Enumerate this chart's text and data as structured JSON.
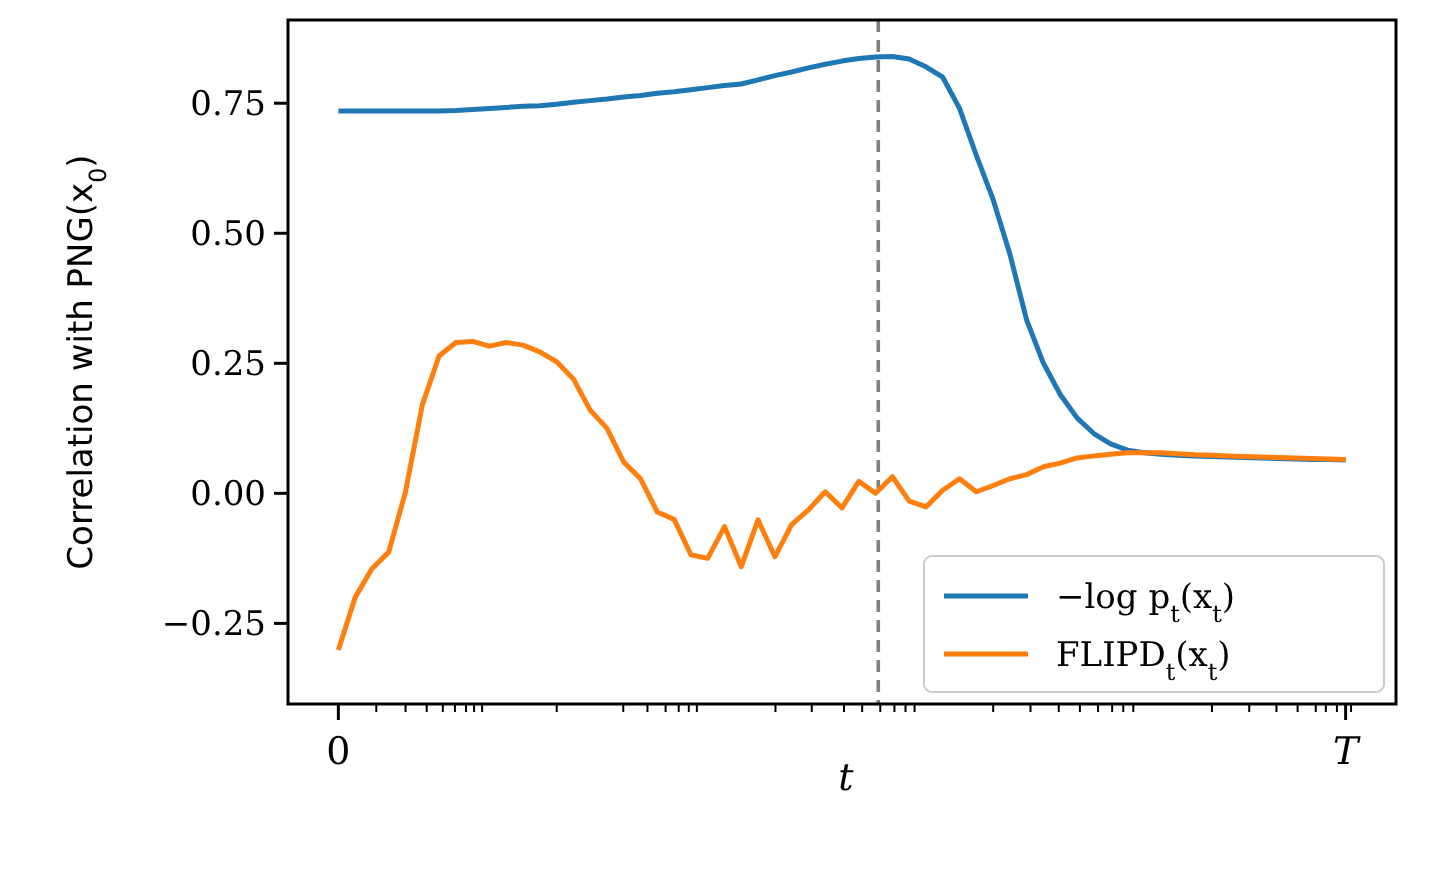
{
  "chart_data": {
    "type": "line",
    "xlabel": "t",
    "ylabel": "Correlation with PNG(x$_{0}$)",
    "categories": [
      "0",
      null,
      null,
      null,
      null,
      null,
      null,
      null,
      null,
      null,
      null,
      null,
      null,
      null,
      null,
      null,
      null,
      null,
      null,
      null,
      null,
      null,
      null,
      null,
      null,
      null,
      null,
      null,
      null,
      null,
      null,
      null,
      null,
      null,
      null,
      null,
      null,
      null,
      null,
      null,
      null,
      null,
      null,
      null,
      null,
      null,
      null,
      null,
      null,
      null,
      null,
      null,
      null,
      null,
      null,
      null,
      null,
      null,
      null,
      null,
      "T"
    ],
    "ylim": [
      -0.405,
      0.91
    ],
    "yticks": [
      {
        "value": -0.25,
        "label": "−0.25"
      },
      {
        "value": 0,
        "label": "0.00"
      },
      {
        "value": 0.25,
        "label": "0.25"
      },
      {
        "value": 0.5,
        "label": "0.50"
      },
      {
        "value": 0.75,
        "label": "0.75"
      }
    ],
    "legend": "bottom right",
    "series": [
      {
        "name": "−log p$_{t}$(x$_{t}$)",
        "color": "#1f77b4",
        "values": [
          0.735,
          0.735,
          0.735,
          0.735,
          0.735,
          0.735,
          0.735,
          0.736,
          0.738,
          0.74,
          0.742,
          0.744,
          0.745,
          0.748,
          0.752,
          0.755,
          0.758,
          0.762,
          0.765,
          0.769,
          0.772,
          0.776,
          0.78,
          0.784,
          0.787,
          0.795,
          0.803,
          0.81,
          0.818,
          0.825,
          0.831,
          0.836,
          0.839,
          0.84,
          0.835,
          0.82,
          0.8,
          0.74,
          0.65,
          0.565,
          0.46,
          0.333,
          0.25,
          0.19,
          0.145,
          0.115,
          0.095,
          0.083,
          0.078,
          0.075,
          0.073,
          0.072,
          0.071,
          0.07,
          0.069,
          0.068,
          0.067,
          0.066,
          0.065,
          0.065,
          0.064
        ]
      },
      {
        "name": "FLIPD$_{t}$(x$_{t}$)",
        "color": "#ff7f0e",
        "values": [
          -0.301,
          -0.2,
          -0.145,
          -0.113,
          0.003,
          0.17,
          0.264,
          0.29,
          0.292,
          0.283,
          0.29,
          0.285,
          0.272,
          0.253,
          0.22,
          0.16,
          0.125,
          0.06,
          0.028,
          -0.036,
          -0.05,
          -0.118,
          -0.125,
          -0.064,
          -0.141,
          -0.051,
          -0.122,
          -0.06,
          -0.032,
          0.003,
          -0.028,
          0.023,
          0,
          0.032,
          -0.015,
          -0.026,
          0.006,
          0.028,
          0.003,
          0.015,
          0.028,
          0.036,
          0.051,
          0.058,
          0.068,
          0.072,
          0.075,
          0.078,
          0.078,
          0.078,
          0.076,
          0.074,
          0.073,
          0.072,
          0.071,
          0.07,
          0.069,
          0.068,
          0.067,
          0.066,
          0.065
        ]
      }
    ]
  }
}
